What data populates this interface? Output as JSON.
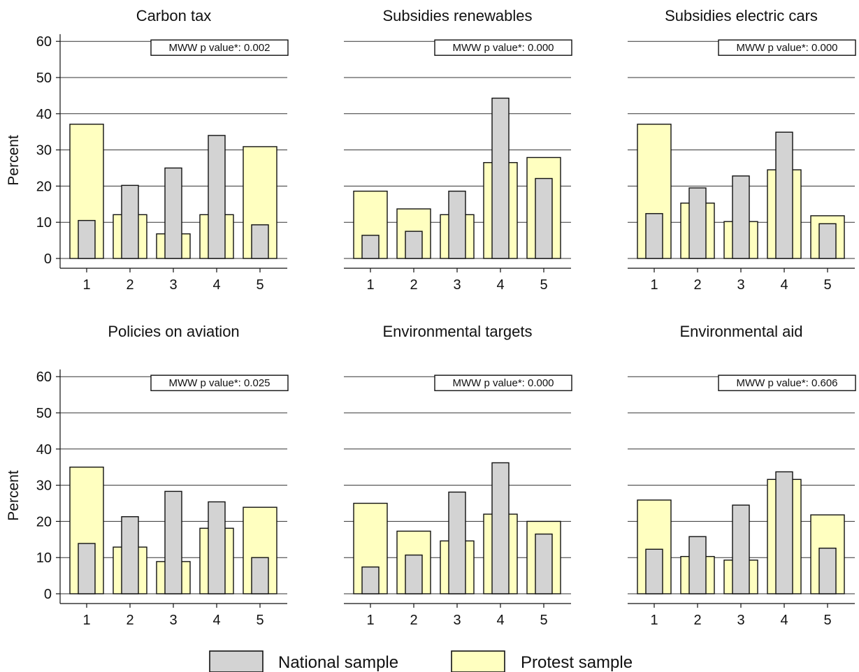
{
  "chart_data": {
    "type": "bar",
    "layout": "2x3 small multiples",
    "ylabel": "Percent",
    "ylim": [
      0,
      62
    ],
    "yticks": [
      0,
      10,
      20,
      30,
      40,
      50,
      60
    ],
    "categories": [
      "1",
      "2",
      "3",
      "4",
      "5"
    ],
    "grid": true,
    "legend": {
      "position": "bottom",
      "entries": [
        {
          "name": "National sample",
          "color": "#d3d3d3"
        },
        {
          "name": "Protest sample",
          "color": "#ffffc0"
        }
      ]
    },
    "colors": {
      "national": "#d3d3d3",
      "protest": "#ffffc0",
      "edge": "#111111"
    },
    "panels": [
      {
        "title": "Carbon tax",
        "annotation": "MWW p  value*: 0.002",
        "series": [
          {
            "name": "National sample",
            "values": [
              10.5,
              20.2,
              25.0,
              34.0,
              9.3
            ]
          },
          {
            "name": "Protest sample",
            "values": [
              37.1,
              12.1,
              6.8,
              12.1,
              30.9
            ]
          }
        ]
      },
      {
        "title": "Subsidies renewables",
        "annotation": "MWW p  value*: 0.000",
        "series": [
          {
            "name": "National sample",
            "values": [
              6.4,
              7.5,
              18.6,
              44.3,
              22.1
            ]
          },
          {
            "name": "Protest sample",
            "values": [
              18.6,
              13.7,
              12.1,
              26.5,
              27.9
            ]
          }
        ]
      },
      {
        "title": "Subsidies electric cars",
        "annotation": "MWW p  value*: 0.000",
        "series": [
          {
            "name": "National sample",
            "values": [
              12.4,
              19.5,
              22.8,
              34.9,
              9.6
            ]
          },
          {
            "name": "Protest sample",
            "values": [
              37.1,
              15.3,
              10.2,
              24.5,
              11.8
            ]
          }
        ]
      },
      {
        "title": "Policies on aviation",
        "annotation": "MWW p  value*: 0.025",
        "series": [
          {
            "name": "National sample",
            "values": [
              13.9,
              21.3,
              28.3,
              25.4,
              10.0
            ]
          },
          {
            "name": "Protest sample",
            "values": [
              35.0,
              12.9,
              8.9,
              18.1,
              23.9
            ]
          }
        ]
      },
      {
        "title": "Environmental targets",
        "annotation": "MWW p  value*: 0.000",
        "series": [
          {
            "name": "National sample",
            "values": [
              7.4,
              10.7,
              28.1,
              36.2,
              16.5
            ]
          },
          {
            "name": "Protest sample",
            "values": [
              25.0,
              17.3,
              14.6,
              22.0,
              20.0
            ]
          }
        ]
      },
      {
        "title": "Environmental aid",
        "annotation": "MWW p  value*: 0.606",
        "series": [
          {
            "name": "National sample",
            "values": [
              12.3,
              15.8,
              24.5,
              33.7,
              12.6
            ]
          },
          {
            "name": "Protest sample",
            "values": [
              25.9,
              10.3,
              9.3,
              31.6,
              21.8
            ]
          }
        ]
      }
    ]
  }
}
